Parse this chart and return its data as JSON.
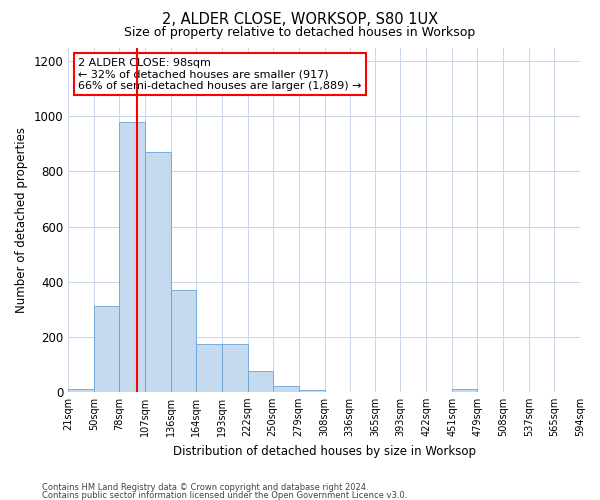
{
  "title": "2, ALDER CLOSE, WORKSOP, S80 1UX",
  "subtitle": "Size of property relative to detached houses in Worksop",
  "xlabel": "Distribution of detached houses by size in Worksop",
  "ylabel": "Number of detached properties",
  "footnote1": "Contains HM Land Registry data © Crown copyright and database right 2024.",
  "footnote2": "Contains public sector information licensed under the Open Government Licence v3.0.",
  "annotation_line1": "2 ALDER CLOSE: 98sqm",
  "annotation_line2": "← 32% of detached houses are smaller (917)",
  "annotation_line3": "66% of semi-detached houses are larger (1,889) →",
  "bar_left_edges": [
    21,
    50,
    78,
    107,
    136,
    164,
    193,
    222,
    250,
    279,
    308,
    336,
    365,
    393,
    422,
    451,
    479,
    508,
    537,
    565
  ],
  "bar_widths": [
    29,
    28,
    29,
    29,
    28,
    29,
    29,
    28,
    29,
    29,
    28,
    29,
    28,
    29,
    29,
    28,
    29,
    29,
    28,
    29
  ],
  "bar_heights": [
    10,
    310,
    980,
    870,
    370,
    175,
    175,
    75,
    20,
    5,
    0,
    0,
    0,
    0,
    0,
    10,
    0,
    0,
    0,
    0
  ],
  "tick_labels": [
    "21sqm",
    "50sqm",
    "78sqm",
    "107sqm",
    "136sqm",
    "164sqm",
    "193sqm",
    "222sqm",
    "250sqm",
    "279sqm",
    "308sqm",
    "336sqm",
    "365sqm",
    "393sqm",
    "422sqm",
    "451sqm",
    "479sqm",
    "508sqm",
    "537sqm",
    "565sqm",
    "594sqm"
  ],
  "bar_color": "#c5d9ef",
  "bar_edge_color": "#6aa3d5",
  "red_line_x": 98,
  "ylim": [
    0,
    1250
  ],
  "yticks": [
    0,
    200,
    400,
    600,
    800,
    1000,
    1200
  ],
  "background_color": "#ffffff",
  "grid_color": "#c8d4e8"
}
